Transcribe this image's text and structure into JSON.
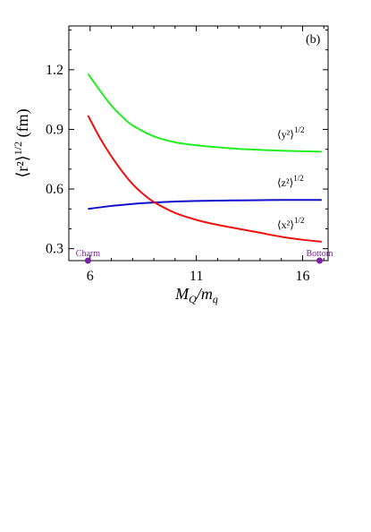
{
  "chart_data": {
    "type": "line",
    "panel_label": "(b)",
    "xlabel": "M_Q/m_q",
    "ylabel": "⟨r²⟩^1/2 (fm)",
    "xlim": [
      5.0,
      17.2
    ],
    "ylim": [
      0.24,
      1.42
    ],
    "x_ticks": [
      6,
      11,
      16
    ],
    "y_ticks": [
      0.3,
      0.6,
      0.9,
      1.2
    ],
    "grid": false,
    "series": [
      {
        "name": "⟨y²⟩^1/2",
        "color": "#22ee22",
        "x": [
          5.9,
          6.5,
          7.0,
          7.5,
          8.0,
          9.0,
          10.0,
          11.0,
          12.0,
          13.0,
          14.0,
          15.0,
          16.0,
          16.9
        ],
        "y": [
          1.18,
          1.09,
          1.02,
          0.965,
          0.92,
          0.865,
          0.835,
          0.82,
          0.81,
          0.802,
          0.797,
          0.793,
          0.79,
          0.788
        ]
      },
      {
        "name": "⟨z²⟩^1/2",
        "color": "#1010cc",
        "x": [
          5.9,
          7.0,
          8.0,
          9.0,
          10.0,
          11.0,
          12.0,
          13.0,
          14.0,
          15.0,
          16.0,
          16.9
        ],
        "y": [
          0.5,
          0.515,
          0.525,
          0.532,
          0.537,
          0.54,
          0.542,
          0.543,
          0.544,
          0.545,
          0.545,
          0.545
        ]
      },
      {
        "name": "⟨x²⟩^1/2",
        "color": "#ee1111",
        "x": [
          5.9,
          6.5,
          7.0,
          7.5,
          8.0,
          8.5,
          9.0,
          10.0,
          11.0,
          12.0,
          13.0,
          14.0,
          15.0,
          16.0,
          16.9
        ],
        "y": [
          0.97,
          0.85,
          0.765,
          0.69,
          0.625,
          0.575,
          0.535,
          0.48,
          0.445,
          0.42,
          0.4,
          0.38,
          0.36,
          0.345,
          0.335
        ]
      }
    ],
    "markers": [
      {
        "label": "Charm",
        "x": 5.9,
        "color": "#7b1fa2"
      },
      {
        "label": "Bottom",
        "x": 16.8,
        "color": "#7b1fa2"
      }
    ]
  }
}
